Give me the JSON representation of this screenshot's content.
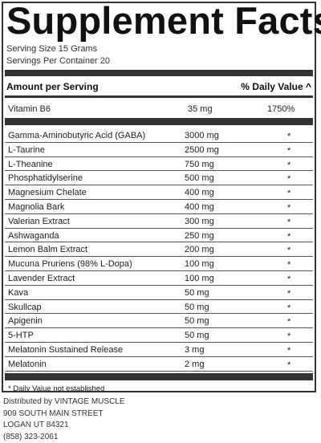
{
  "title": "Supplement Facts",
  "serving_size": "Serving Size 15 Grams",
  "servings_per_container": "Servings Per Container 20",
  "header": {
    "amount": "Amount per Serving",
    "dv": "% Daily Value ^"
  },
  "vitamin": {
    "name": "Vitamin B6",
    "amount": "35 mg",
    "dv": "1750%"
  },
  "ingredients": [
    {
      "name": "Gamma-Aminobutyric Acid (GABA)",
      "amount": "3000 mg",
      "dv": "*"
    },
    {
      "name": "L-Taurine",
      "amount": "2500 mg",
      "dv": "*"
    },
    {
      "name": "L-Theanine",
      "amount": "750 mg",
      "dv": "*"
    },
    {
      "name": "Phosphatidylserine",
      "amount": "500 mg",
      "dv": "*"
    },
    {
      "name": "Magnesium Chelate",
      "amount": "400 mg",
      "dv": "*"
    },
    {
      "name": "Magnolia Bark",
      "amount": "400 mg",
      "dv": "*"
    },
    {
      "name": "Valerian Extract",
      "amount": "300 mg",
      "dv": "*"
    },
    {
      "name": "Ashwaganda",
      "amount": "250 mg",
      "dv": "*"
    },
    {
      "name": "Lemon Balm Extract",
      "amount": "200 mg",
      "dv": "*"
    },
    {
      "name": "Mucuna Pruriens (98% L-Dopa)",
      "amount": "100 mg",
      "dv": "*"
    },
    {
      "name": "Lavender Extract",
      "amount": "100 mg",
      "dv": "*"
    },
    {
      "name": "Kava",
      "amount": "50 mg",
      "dv": "*"
    },
    {
      "name": "Skullcap",
      "amount": "50 mg",
      "dv": "*"
    },
    {
      "name": "Apigenin",
      "amount": "50 mg",
      "dv": "*"
    },
    {
      "name": "5-HTP",
      "amount": "50 mg",
      "dv": "*"
    },
    {
      "name": "Melatonin Sustained Release",
      "amount": "3 mg",
      "dv": "*"
    },
    {
      "name": "Melatonin",
      "amount": "2 mg",
      "dv": "*"
    }
  ],
  "footnote": "* Daily Value not established",
  "distributor": {
    "line1": "Distributed by VINTAGE MUSCLE",
    "line2": "909 SOUTH MAIN STREET",
    "line3": "LOGAN UT 84321",
    "line4": "(858) 323-2061"
  }
}
